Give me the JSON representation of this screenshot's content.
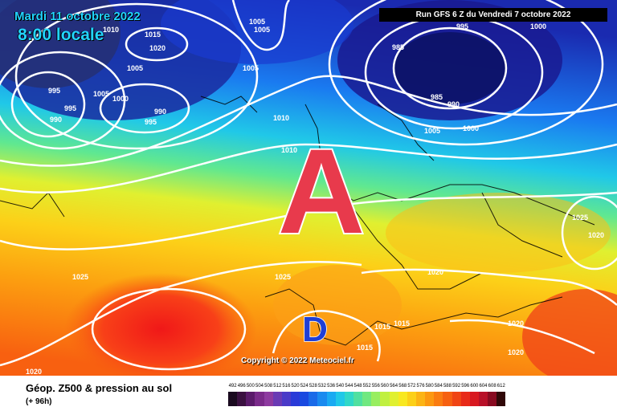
{
  "header": {
    "date": "Mardi 11 octobre 2022",
    "time": "8:00 locale",
    "run": "Run GFS 6 Z du Vendredi 7 octobre 2022"
  },
  "map": {
    "high_symbol": "A",
    "low_symbol": "D",
    "high_color": "#e83a4c",
    "low_color": "#1f3fd6",
    "isobar_labels": [
      "995",
      "1000",
      "1005",
      "1005",
      "1005",
      "1010",
      "1015",
      "1020",
      "995",
      "995",
      "990",
      "990",
      "995",
      "1005",
      "1000",
      "990",
      "995",
      "1000",
      "985",
      "985",
      "990",
      "1005",
      "1000",
      "1010",
      "1010",
      "1025",
      "1020",
      "1025",
      "1025",
      "1020",
      "1015",
      "1015",
      "1015",
      "1020",
      "1020",
      "1020",
      "1020"
    ]
  },
  "copyright": "Copyright © 2022 Meteociel.fr",
  "footer": {
    "title": "Géop. Z500 & pression au sol",
    "subtitle": "(+ 96h)",
    "scale_labels": [
      "492",
      "496",
      "500",
      "504",
      "508",
      "512",
      "516",
      "520",
      "524",
      "528",
      "532",
      "536",
      "540",
      "544",
      "548",
      "552",
      "556",
      "560",
      "564",
      "568",
      "572",
      "576",
      "580",
      "584",
      "588",
      "592",
      "596",
      "600",
      "604",
      "608",
      "612"
    ],
    "scale_colors": [
      "#1a0a1f",
      "#3a1040",
      "#5a1a6a",
      "#7a2a8a",
      "#8e3aa0",
      "#6a3ab4",
      "#4a3ac8",
      "#2a3ad8",
      "#1a4ae0",
      "#1a6ae8",
      "#1a8aef",
      "#1aaaf2",
      "#20c8e8",
      "#30d8c8",
      "#50e0a0",
      "#70e880",
      "#98ee60",
      "#c0f040",
      "#e0f030",
      "#f8e820",
      "#fcd018",
      "#fcb414",
      "#fc9810",
      "#fa7c10",
      "#f66010",
      "#f04414",
      "#e82a18",
      "#d81820",
      "#b81028",
      "#880a20",
      "#300808"
    ]
  }
}
